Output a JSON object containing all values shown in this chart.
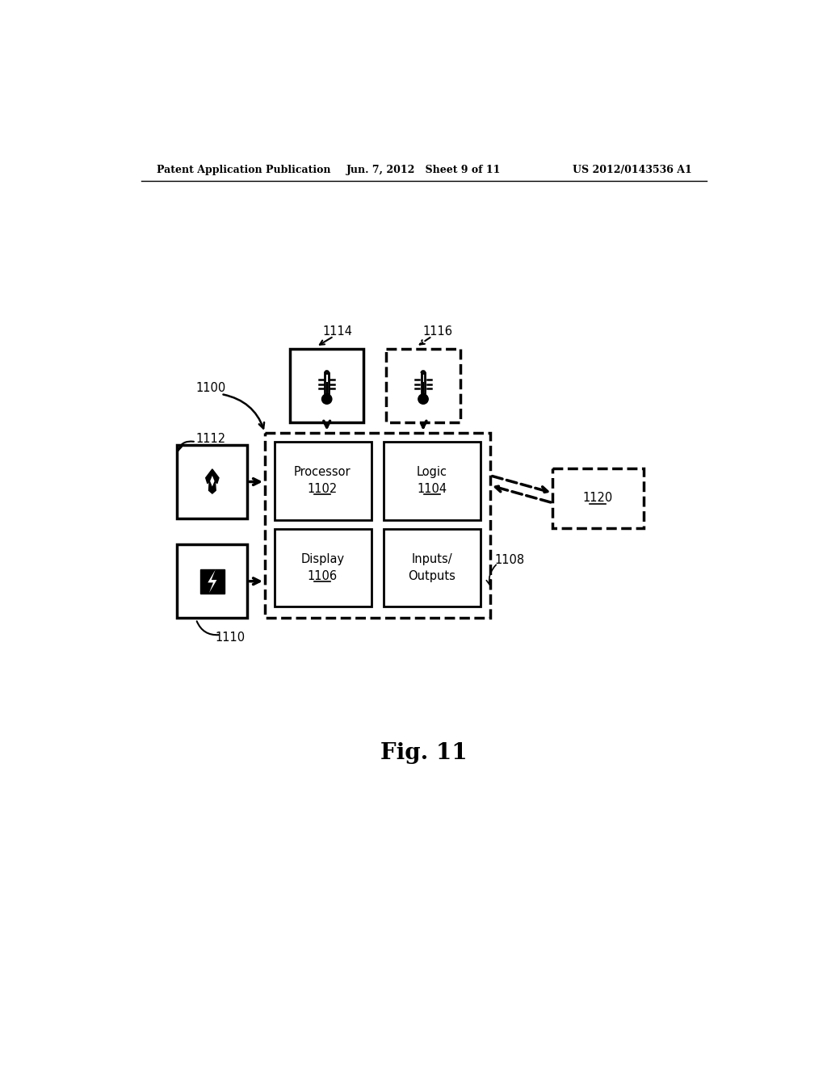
{
  "bg": "#ffffff",
  "header_left": "Patent Application Publication",
  "header_center": "Jun. 7, 2012   Sheet 9 of 11",
  "header_right": "US 2012/0143536 A1",
  "fig_label": "Fig. 11",
  "processor_label": "Processor",
  "processor_num": "1102",
  "logic_label": "Logic",
  "logic_num": "1104",
  "display_label": "Display",
  "display_num": "1106",
  "io_label1": "Inputs/",
  "io_label2": "Outputs",
  "label_1100": "1100",
  "label_1108": "1108",
  "label_1110": "1110",
  "label_1112": "1112",
  "label_1114": "1114",
  "label_1116": "1116",
  "label_1120": "1120"
}
